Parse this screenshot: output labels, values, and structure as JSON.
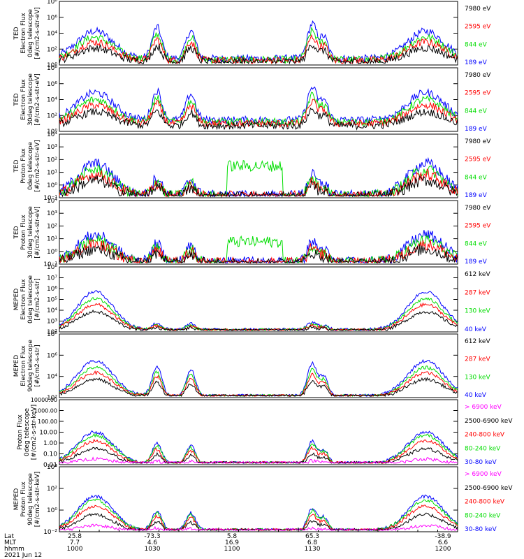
{
  "chart_data": [
    {
      "type": "line",
      "ylabel": [
        "TED",
        "Electron Flux",
        "0deg telescope",
        "[#/cm2-s-str-eV]"
      ],
      "yscale": "log",
      "ytick_labels": [
        "10⁰",
        "10²",
        "10⁴",
        "10⁶",
        "10⁸"
      ],
      "legend_position": "right",
      "series": [
        {
          "name": "7980 eV",
          "color": "#000000"
        },
        {
          "name": "2595 eV",
          "color": "#ff0000"
        },
        {
          "name": "844 eV",
          "color": "#00dd00"
        },
        {
          "name": "189 eV",
          "color": "#0000ff"
        }
      ]
    },
    {
      "type": "line",
      "ylabel": [
        "TED",
        "Electron Flux",
        "30deg telescope",
        "[#/cm2-s-str-eV]"
      ],
      "yscale": "log",
      "ytick_labels": [
        "10⁰",
        "10²",
        "10⁴",
        "10⁶",
        "10⁸"
      ],
      "legend_position": "right",
      "series": [
        {
          "name": "7980 eV",
          "color": "#000000"
        },
        {
          "name": "2595 eV",
          "color": "#ff0000"
        },
        {
          "name": "844 eV",
          "color": "#00dd00"
        },
        {
          "name": "189 eV",
          "color": "#0000ff"
        }
      ]
    },
    {
      "type": "line",
      "ylabel": [
        "TED",
        "Proton Flux",
        "0deg telescope",
        "[#/cm2-s-str-eV]"
      ],
      "yscale": "log",
      "ytick_labels": [
        "10⁻¹",
        "10⁰",
        "10¹",
        "10²",
        "10³",
        "10⁴"
      ],
      "legend_position": "right",
      "series": [
        {
          "name": "7980 eV",
          "color": "#000000"
        },
        {
          "name": "2595 eV",
          "color": "#ff0000"
        },
        {
          "name": "844 eV",
          "color": "#00dd00"
        },
        {
          "name": "189 eV",
          "color": "#0000ff"
        }
      ]
    },
    {
      "type": "line",
      "ylabel": [
        "TED",
        "Proton Flux",
        "30deg telescope",
        "[#/cm2-s-str-eV]"
      ],
      "yscale": "log",
      "ytick_labels": [
        "10⁻¹",
        "10⁰",
        "10¹",
        "10²",
        "10³",
        "10⁴"
      ],
      "legend_position": "right",
      "series": [
        {
          "name": "7980 eV",
          "color": "#000000"
        },
        {
          "name": "2595 eV",
          "color": "#ff0000"
        },
        {
          "name": "844 eV",
          "color": "#00dd00"
        },
        {
          "name": "189 eV",
          "color": "#0000ff"
        }
      ]
    },
    {
      "type": "line",
      "ylabel": [
        "MEPED",
        "Electron Flux",
        "0deg telescope",
        "[#/cm2-s-str]"
      ],
      "yscale": "log",
      "ytick_labels": [
        "10²",
        "10³",
        "10⁴",
        "10⁵",
        "10⁶",
        "10⁷",
        "10⁸"
      ],
      "legend_position": "right",
      "series": [
        {
          "name": "612 keV",
          "color": "#000000"
        },
        {
          "name": "287 keV",
          "color": "#ff0000"
        },
        {
          "name": "130 keV",
          "color": "#00dd00"
        },
        {
          "name": "40 keV",
          "color": "#0000ff"
        }
      ]
    },
    {
      "type": "line",
      "ylabel": [
        "MEPED",
        "Electron Flux",
        "90deg telescope",
        "[#/cm2-s-str]"
      ],
      "yscale": "log",
      "ytick_labels": [
        "10²",
        "10⁴",
        "10⁶",
        "10⁸"
      ],
      "legend_position": "right",
      "series": [
        {
          "name": "612 keV",
          "color": "#000000"
        },
        {
          "name": "287 keV",
          "color": "#ff0000"
        },
        {
          "name": "130 keV",
          "color": "#00dd00"
        },
        {
          "name": "40 keV",
          "color": "#0000ff"
        }
      ]
    },
    {
      "type": "line",
      "ylabel": [
        "Proton Flux",
        "0deg telescope",
        "[#/cm2-s-str-keV]"
      ],
      "yscale": "log",
      "ytick_labels": [
        "0.01",
        "0.10",
        "1.00",
        "10.00",
        "100.00",
        "1000.00",
        "10000.00"
      ],
      "legend_position": "right",
      "series": [
        {
          "name": "> 6900 keV",
          "color": "#ff00ff"
        },
        {
          "name": "2500-6900 keV",
          "color": "#000000"
        },
        {
          "name": "240-800 keV",
          "color": "#ff0000"
        },
        {
          "name": "80-240 keV",
          "color": "#00dd00"
        },
        {
          "name": "30-80 keV",
          "color": "#0000ff"
        }
      ]
    },
    {
      "type": "line",
      "ylabel": [
        "MEPED",
        "Proton Flux",
        "90deg telescope",
        "[#/cm2-s-str-keV]"
      ],
      "yscale": "log",
      "ytick_labels": [
        "10⁻²",
        "10⁰",
        "10²",
        "10⁴"
      ],
      "legend_position": "right",
      "series": [
        {
          "name": "> 6900 keV",
          "color": "#ff00ff"
        },
        {
          "name": "2500-6900 keV",
          "color": "#000000"
        },
        {
          "name": "240-800 keV",
          "color": "#ff0000"
        },
        {
          "name": "80-240 keV",
          "color": "#00dd00"
        },
        {
          "name": "30-80 keV",
          "color": "#0000ff"
        }
      ]
    }
  ],
  "xaxis": {
    "rows": [
      {
        "label": "Lat",
        "values": [
          "25.8",
          "-73.3",
          "5.8",
          "65.3",
          "-38.9"
        ]
      },
      {
        "label": "MLT",
        "values": [
          "7.7",
          "4.6",
          "16.9",
          "6.8",
          "6.6"
        ]
      },
      {
        "label": "hhmm",
        "values": [
          "1000",
          "1030",
          "1100",
          "1130",
          "1200"
        ]
      }
    ],
    "date": "2021 Jun 12"
  }
}
